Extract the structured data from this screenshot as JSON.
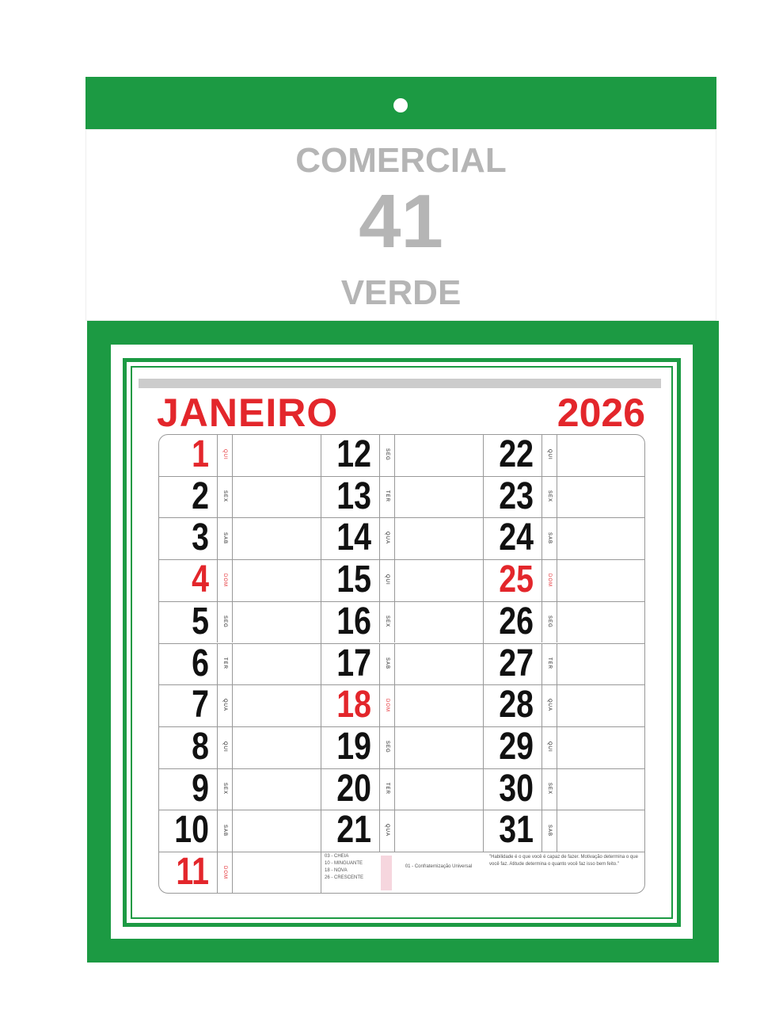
{
  "header": {
    "title": "COMERCIAL",
    "number": "41",
    "subtitle": "VERDE"
  },
  "calendar": {
    "month": "JANEIRO",
    "year": "2026",
    "days": [
      {
        "day": 1,
        "weekday": "QUI",
        "color": "#e3262b"
      },
      {
        "day": 2,
        "weekday": "SEX",
        "color": "#111111"
      },
      {
        "day": 3,
        "weekday": "SAB",
        "color": "#111111"
      },
      {
        "day": 4,
        "weekday": "DOM",
        "color": "#e3262b"
      },
      {
        "day": 5,
        "weekday": "SEG",
        "color": "#111111"
      },
      {
        "day": 6,
        "weekday": "TER",
        "color": "#111111"
      },
      {
        "day": 7,
        "weekday": "QUA",
        "color": "#111111"
      },
      {
        "day": 8,
        "weekday": "QUI",
        "color": "#111111"
      },
      {
        "day": 9,
        "weekday": "SEX",
        "color": "#111111"
      },
      {
        "day": 10,
        "weekday": "SAB",
        "color": "#111111"
      },
      {
        "day": 11,
        "weekday": "DOM",
        "color": "#e3262b"
      },
      {
        "day": 12,
        "weekday": "SEG",
        "color": "#111111"
      },
      {
        "day": 13,
        "weekday": "TER",
        "color": "#111111"
      },
      {
        "day": 14,
        "weekday": "QUA",
        "color": "#111111"
      },
      {
        "day": 15,
        "weekday": "QUI",
        "color": "#111111"
      },
      {
        "day": 16,
        "weekday": "SEX",
        "color": "#111111"
      },
      {
        "day": 17,
        "weekday": "SAB",
        "color": "#111111"
      },
      {
        "day": 18,
        "weekday": "DOM",
        "color": "#e3262b"
      },
      {
        "day": 19,
        "weekday": "SEG",
        "color": "#111111"
      },
      {
        "day": 20,
        "weekday": "TER",
        "color": "#111111"
      },
      {
        "day": 21,
        "weekday": "QUA",
        "color": "#111111"
      },
      {
        "day": 22,
        "weekday": "QUI",
        "color": "#111111"
      },
      {
        "day": 23,
        "weekday": "SEX",
        "color": "#111111"
      },
      {
        "day": 24,
        "weekday": "SAB",
        "color": "#111111"
      },
      {
        "day": 25,
        "weekday": "DOM",
        "color": "#e3262b"
      },
      {
        "day": 26,
        "weekday": "SEG",
        "color": "#111111"
      },
      {
        "day": 27,
        "weekday": "TER",
        "color": "#111111"
      },
      {
        "day": 28,
        "weekday": "QUA",
        "color": "#111111"
      },
      {
        "day": 29,
        "weekday": "QUI",
        "color": "#111111"
      },
      {
        "day": 30,
        "weekday": "SEX",
        "color": "#111111"
      },
      {
        "day": 31,
        "weekday": "SAB",
        "color": "#111111"
      }
    ],
    "moon_phases": [
      "03 - CHEIA",
      "10 - MINGUANTE",
      "18 - NOVA",
      "26 - CRESCENTE"
    ],
    "holidays": [
      "01 - Confraternização Universal"
    ],
    "quote": "\"Habilidade é o que você é capaz de fazer. Motivação determina o que você faz. Atitude determina o quanto você faz isso bem feito.\""
  }
}
